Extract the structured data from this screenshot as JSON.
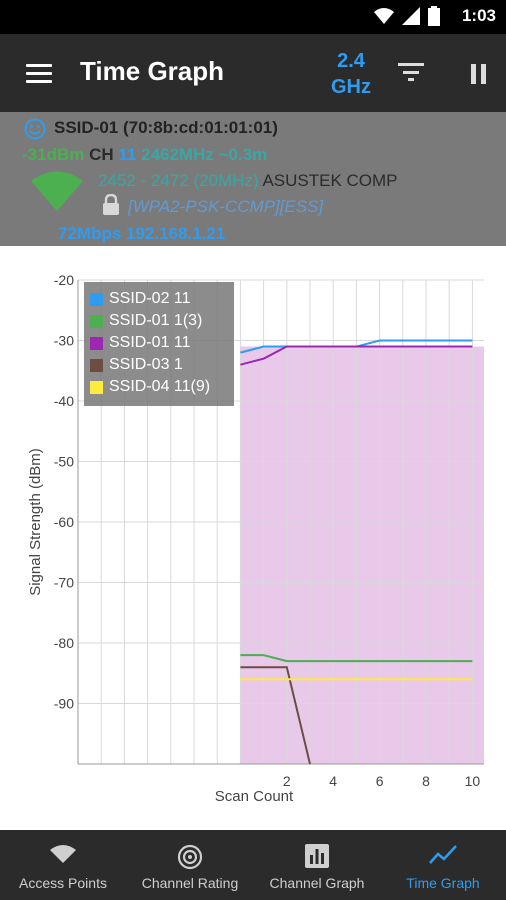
{
  "status_bar": {
    "time": "1:03"
  },
  "app_bar": {
    "title": "Time Graph",
    "band_line1": "2.4",
    "band_line2": "GHz"
  },
  "access_point": {
    "ssid": "SSID-01 (70:8b:cd:01:01:01)",
    "signal": "-31dBm",
    "ch_label": "CH",
    "channel": "11",
    "frequency": "2462MHz",
    "distance": "~0.3m",
    "range": "2452 - 2472 (20MHz)",
    "vendor": "ASUSTEK COMP",
    "security": "[WPA2-PSK-CCMP][ESS]",
    "rate_ip": "72Mbps 192.168.1.21"
  },
  "chart_data": {
    "type": "line",
    "ylabel": "Signal Strength (dBm)",
    "xlabel": "Scan Count",
    "ylim": [
      -100,
      -20
    ],
    "yticks": [
      "-20",
      "-30",
      "-40",
      "-50",
      "-60",
      "-70",
      "-80",
      "-90"
    ],
    "xticks": [
      "2",
      "4",
      "6",
      "8",
      "10"
    ],
    "xlim": [
      -7,
      10.5
    ],
    "highlight_start": 0,
    "series": [
      {
        "name": "SSID-02 11",
        "color": "#2f9cf0",
        "x": [
          0,
          1,
          2,
          3,
          4,
          5,
          6,
          7,
          8,
          9,
          10
        ],
        "y": [
          -32,
          -31,
          -31,
          -31,
          -31,
          -31,
          -30,
          -30,
          -30,
          -30,
          -30
        ]
      },
      {
        "name": "SSID-01 1(3)",
        "color": "#4caf50",
        "x": [
          0,
          1,
          2,
          3,
          4,
          5,
          6,
          7,
          8,
          9,
          10
        ],
        "y": [
          -82,
          -82,
          -83,
          -83,
          -83,
          -83,
          -83,
          -83,
          -83,
          -83,
          -83
        ]
      },
      {
        "name": "SSID-01 11",
        "color": "#9c27b0",
        "x": [
          0,
          1,
          2,
          3,
          4,
          5,
          6,
          7,
          8,
          9,
          10
        ],
        "y": [
          -34,
          -33,
          -31,
          -31,
          -31,
          -31,
          -31,
          -31,
          -31,
          -31,
          -31
        ]
      },
      {
        "name": "SSID-03 1",
        "color": "#6d4c41",
        "x": [
          0,
          1,
          2,
          3
        ],
        "y": [
          -84,
          -84,
          -84,
          -100
        ]
      },
      {
        "name": "SSID-04 11(9)",
        "color": "#ffeb3b",
        "x": [
          0,
          1,
          2,
          3,
          4,
          5,
          6,
          7,
          8,
          9,
          10
        ],
        "y": [
          -86,
          -86,
          -86,
          -86,
          -86,
          -86,
          -86,
          -86,
          -86,
          -86,
          -86
        ]
      }
    ],
    "grid": true
  },
  "bottom_nav": [
    {
      "label": "Access Points",
      "icon": "wifi-icon"
    },
    {
      "label": "Channel Rating",
      "icon": "channel-rating-icon"
    },
    {
      "label": "Channel Graph",
      "icon": "bar-chart-icon"
    },
    {
      "label": "Time Graph",
      "icon": "timeline-icon",
      "active": true
    }
  ],
  "colors": {
    "accent": "#2f9cf0",
    "appbar": "#2b2b2b",
    "header_panel": "#7a7a7a",
    "highlight": "#e8c9ea"
  }
}
